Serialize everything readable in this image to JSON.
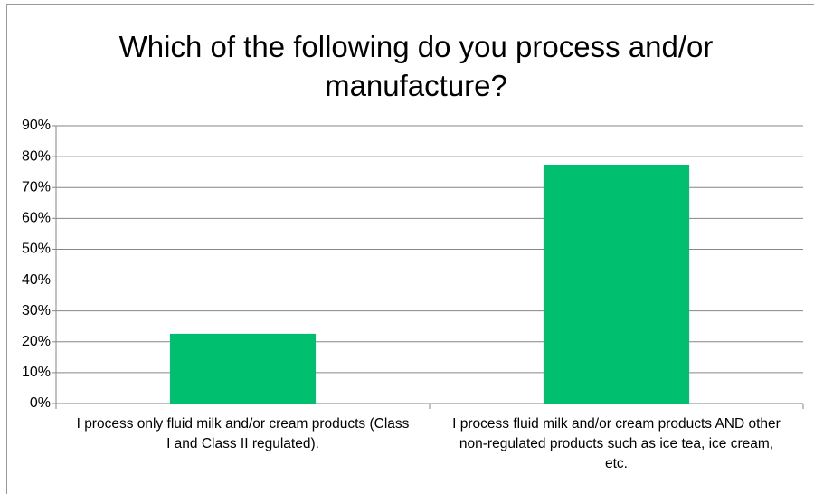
{
  "chart_data": {
    "type": "bar",
    "title": "Which of the following do you process and/or manufacture?",
    "categories": [
      "I process only fluid milk and/or cream products (Class I and Class II regulated).",
      "I process fluid milk and/or cream products AND other non-regulated products such as ice tea, ice cream, etc."
    ],
    "values": [
      22.6,
      77.4
    ],
    "color": "#00bf6f",
    "ylim": [
      0,
      90
    ],
    "yticks": [
      {
        "value": 0,
        "label": "0%"
      },
      {
        "value": 10,
        "label": "10%"
      },
      {
        "value": 20,
        "label": "20%"
      },
      {
        "value": 30,
        "label": "30%"
      },
      {
        "value": 40,
        "label": "40%"
      },
      {
        "value": 50,
        "label": "50%"
      },
      {
        "value": 60,
        "label": "60%"
      },
      {
        "value": 70,
        "label": "70%"
      },
      {
        "value": 80,
        "label": "80%"
      },
      {
        "value": 90,
        "label": "90%"
      }
    ],
    "grid": true
  }
}
